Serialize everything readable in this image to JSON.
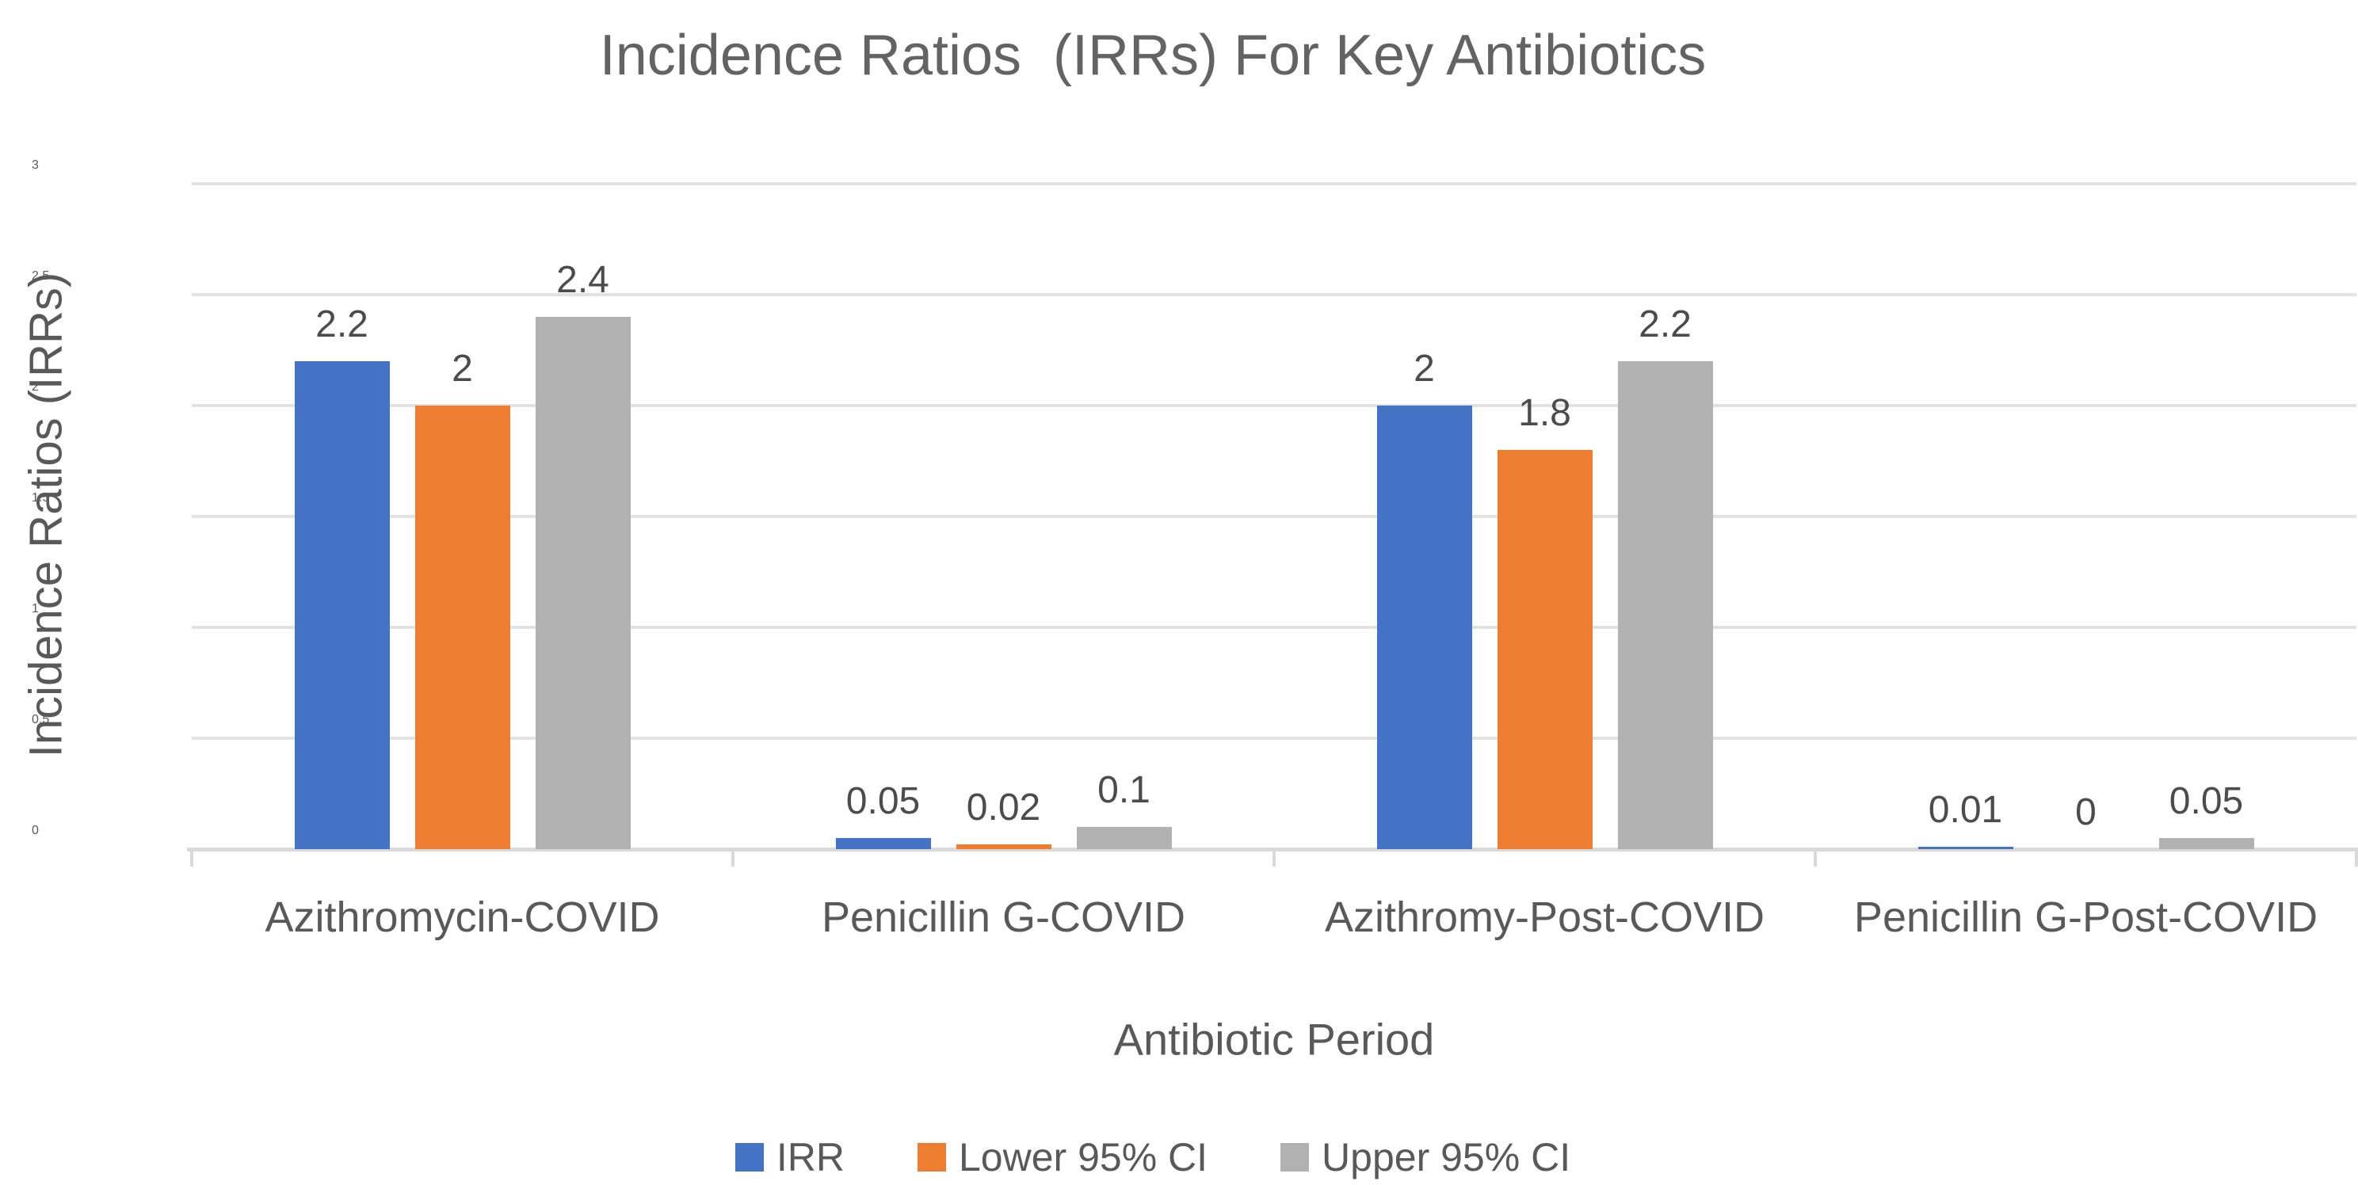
{
  "chart_data": {
    "type": "bar",
    "title": "Incidence Ratios  (IRRs) For Key Antibiotics",
    "xlabel": "Antibiotic Period",
    "ylabel": "Incidence Ratios (IRRs)",
    "ylim": [
      0,
      3
    ],
    "yticks": [
      0,
      0.5,
      1,
      1.5,
      2,
      2.5,
      3
    ],
    "ytick_labels": [
      "0",
      "0.5",
      "1",
      "1.5",
      "2",
      "2.5",
      "3"
    ],
    "grid": true,
    "legend_position": "bottom",
    "categories": [
      "Azithromycin-COVID",
      "Penicillin G-COVID",
      "Azithromy-Post-COVID",
      "Penicillin G-Post-COVID"
    ],
    "series": [
      {
        "name": "IRR",
        "color": "#4472C4",
        "values": [
          2.2,
          0.05,
          2,
          0.01
        ],
        "labels": [
          "2.2",
          "0.05",
          "2",
          "0.01"
        ]
      },
      {
        "name": "Lower 95% CI",
        "color": "#ED7D31",
        "values": [
          2,
          0.02,
          1.8,
          0
        ],
        "labels": [
          "2",
          "0.02",
          "1.8",
          "0"
        ]
      },
      {
        "name": "Upper 95% CI",
        "color": "#B1B1B1",
        "values": [
          2.4,
          0.1,
          2.2,
          0.05
        ],
        "labels": [
          "2.4",
          "0.1",
          "2.2",
          "0.05"
        ]
      }
    ]
  },
  "colors": {
    "gridline": "#E2E2E2",
    "baseline": "#D9D9D9",
    "axis_tick": "#D9D9D9",
    "title_text": "#636363",
    "axis_text": "#595959",
    "data_label_text": "#4C4C4C"
  }
}
